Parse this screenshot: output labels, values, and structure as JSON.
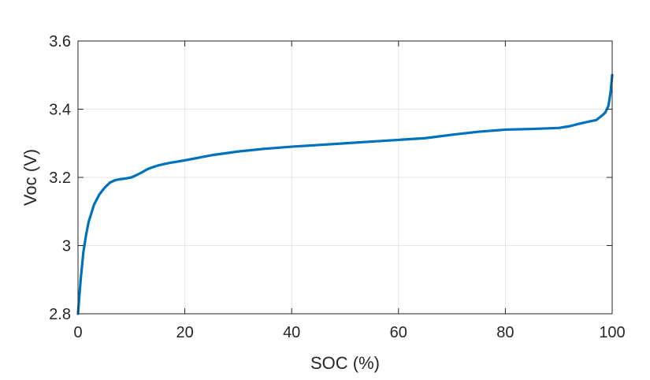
{
  "chart_data": {
    "type": "line",
    "xlabel": "SOC (%)",
    "ylabel": "Voc (V)",
    "xlim": [
      0,
      100
    ],
    "ylim": [
      2.8,
      3.6
    ],
    "xticks": [
      0,
      20,
      40,
      60,
      80,
      100
    ],
    "xtick_labels": [
      "0",
      "20",
      "40",
      "60",
      "80",
      "100"
    ],
    "yticks": [
      2.8,
      3.0,
      3.2,
      3.4,
      3.6
    ],
    "ytick_labels": [
      "2.8",
      "3",
      "3.2",
      "3.4",
      "3.6"
    ],
    "grid": true,
    "series": [
      {
        "color": "#0072bd",
        "x": [
          0,
          0.5,
          1,
          1.5,
          2,
          3,
          4,
          5,
          6,
          7,
          8,
          9,
          10,
          11,
          12,
          13,
          14,
          15,
          17,
          20,
          25,
          30,
          35,
          40,
          45,
          50,
          55,
          60,
          65,
          70,
          75,
          80,
          85,
          90,
          92,
          94,
          96,
          97,
          98,
          98.7,
          99.3,
          99.7,
          100
        ],
        "y": [
          2.8,
          2.9,
          2.98,
          3.03,
          3.07,
          3.12,
          3.15,
          3.17,
          3.185,
          3.192,
          3.195,
          3.197,
          3.2,
          3.207,
          3.215,
          3.224,
          3.23,
          3.235,
          3.242,
          3.25,
          3.265,
          3.276,
          3.284,
          3.29,
          3.295,
          3.3,
          3.305,
          3.31,
          3.315,
          3.325,
          3.334,
          3.34,
          3.342,
          3.345,
          3.35,
          3.358,
          3.365,
          3.368,
          3.38,
          3.39,
          3.41,
          3.45,
          3.5
        ]
      }
    ]
  }
}
